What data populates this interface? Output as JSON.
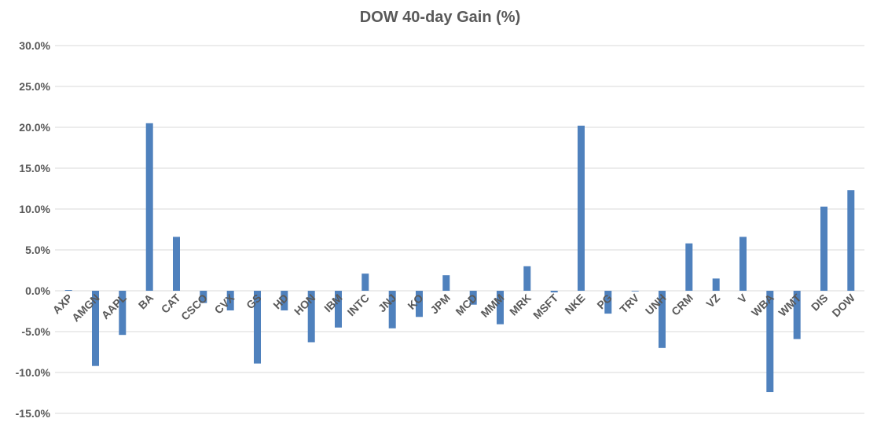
{
  "chart_data": {
    "type": "bar",
    "title": "DOW 40-day Gain (%)",
    "xlabel": "",
    "ylabel": "",
    "ylim": [
      -15,
      30
    ],
    "ytick_values": [
      30,
      25,
      20,
      15,
      10,
      5,
      0,
      -5,
      -10,
      -15
    ],
    "ytick_labels": [
      "30.0%",
      "25.0%",
      "20.0%",
      "15.0%",
      "10.0%",
      "5.0%",
      "0.0%",
      "-5.0%",
      "-10.0%",
      "-15.0%"
    ],
    "grid": true,
    "legend": "none",
    "bar_color": "#4f81bd",
    "categories": [
      "AXP",
      "AMGN",
      "AAPL",
      "BA",
      "CAT",
      "CSCO",
      "CVX",
      "GS",
      "HD",
      "HON",
      "IBM",
      "INTC",
      "JNJ",
      "KO",
      "JPM",
      "MCD",
      "MMM",
      "MRK",
      "MSFT",
      "NKE",
      "PG",
      "TRV",
      "UNH",
      "CRM",
      "VZ",
      "V",
      "WBA",
      "WMT",
      "DIS",
      "DOW"
    ],
    "values": [
      0.1,
      -9.2,
      -5.4,
      20.5,
      6.6,
      -1.5,
      -2.4,
      -8.9,
      -2.4,
      -6.3,
      -4.5,
      2.1,
      -4.6,
      -3.2,
      1.9,
      -1.7,
      -4.1,
      3.0,
      -0.2,
      20.2,
      -2.8,
      0.0,
      -7.0,
      5.8,
      1.5,
      6.6,
      -12.4,
      -5.9,
      10.3,
      12.3
    ]
  }
}
